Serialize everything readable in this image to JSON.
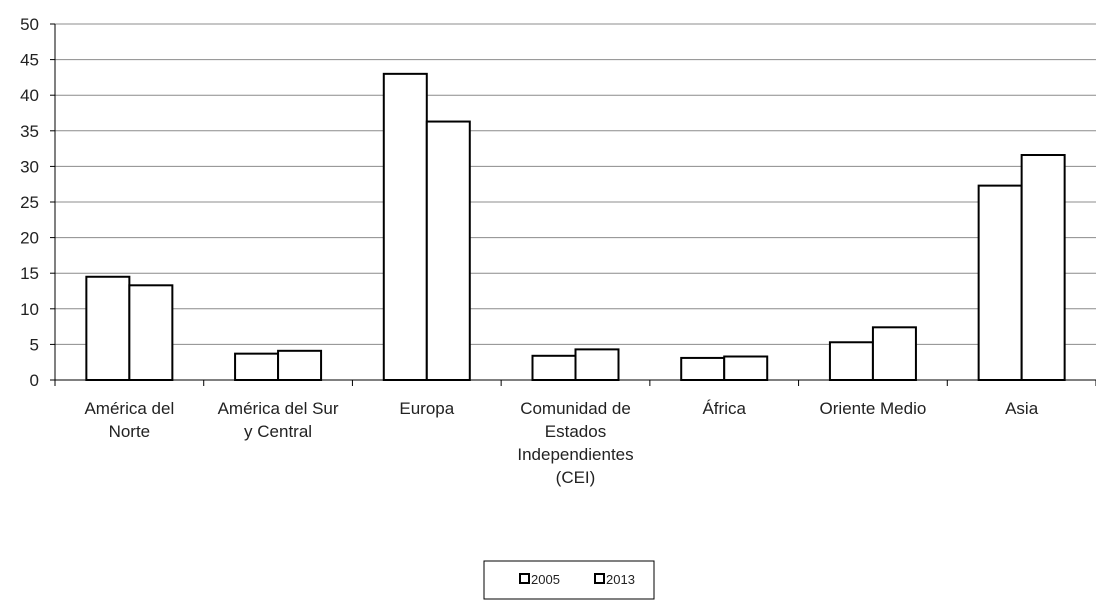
{
  "chart_data": {
    "type": "bar",
    "categories": [
      [
        "América del",
        "Norte"
      ],
      [
        "América del Sur",
        "y Central"
      ],
      [
        "Europa"
      ],
      [
        "Comunidad de",
        "Estados",
        "Independientes",
        "(CEI)"
      ],
      [
        "África"
      ],
      [
        "Oriente Medio"
      ],
      [
        "Asia"
      ]
    ],
    "series": [
      {
        "name": "2005",
        "values": [
          14.5,
          3.7,
          43.0,
          3.4,
          3.1,
          5.3,
          27.3
        ]
      },
      {
        "name": "2013",
        "values": [
          13.3,
          4.1,
          36.3,
          4.3,
          3.3,
          7.4,
          31.6
        ]
      }
    ],
    "ylim": [
      0,
      50
    ],
    "yticks": [
      0,
      5,
      10,
      15,
      20,
      25,
      30,
      35,
      40,
      45,
      50
    ],
    "grid": true,
    "legend_position": "bottom-center",
    "colors": {
      "bar_fill": "#ffffff",
      "bar_stroke": "#000000",
      "grid": "#8c8c8c",
      "axis": "#000000"
    }
  }
}
